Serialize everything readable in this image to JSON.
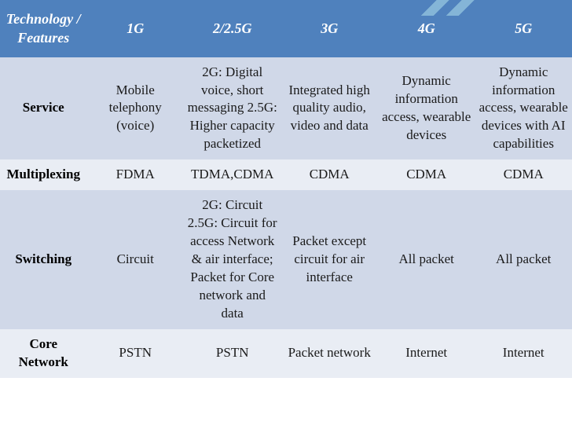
{
  "table": {
    "header_bg": "#4f81bd",
    "header_color": "#ffffff",
    "row_odd_bg": "#d0d8e8",
    "row_even_bg": "#e9edf4",
    "font_family": "Times New Roman",
    "header_fontsize": 18,
    "cell_fontsize": 17,
    "columns": [
      "Technology / Features",
      "1G",
      "2/2.5G",
      "3G",
      "4G",
      "5G"
    ],
    "rows": [
      {
        "label": "Service",
        "cells": [
          "Mobile telephony (voice)",
          "2G: Digital voice, short messaging 2.5G: Higher capacity packetized",
          "Integrated high quality audio, video and data",
          "Dynamic information access, wearable devices",
          "Dynamic information access, wearable devices with AI capabilities"
        ]
      },
      {
        "label": "Multiplexing",
        "cells": [
          "FDMA",
          "TDMA,CDMA",
          "CDMA",
          "CDMA",
          "CDMA"
        ]
      },
      {
        "label": "Switching",
        "cells": [
          "Circuit",
          "2G: Circuit 2.5G: Circuit for access Network & air interface; Packet for Core network and data",
          "Packet except circuit for air interface",
          "All packet",
          "All packet"
        ]
      },
      {
        "label": "Core Network",
        "cells": [
          "PSTN",
          "PSTN",
          "Packet network",
          "Internet",
          "Internet"
        ]
      }
    ]
  }
}
